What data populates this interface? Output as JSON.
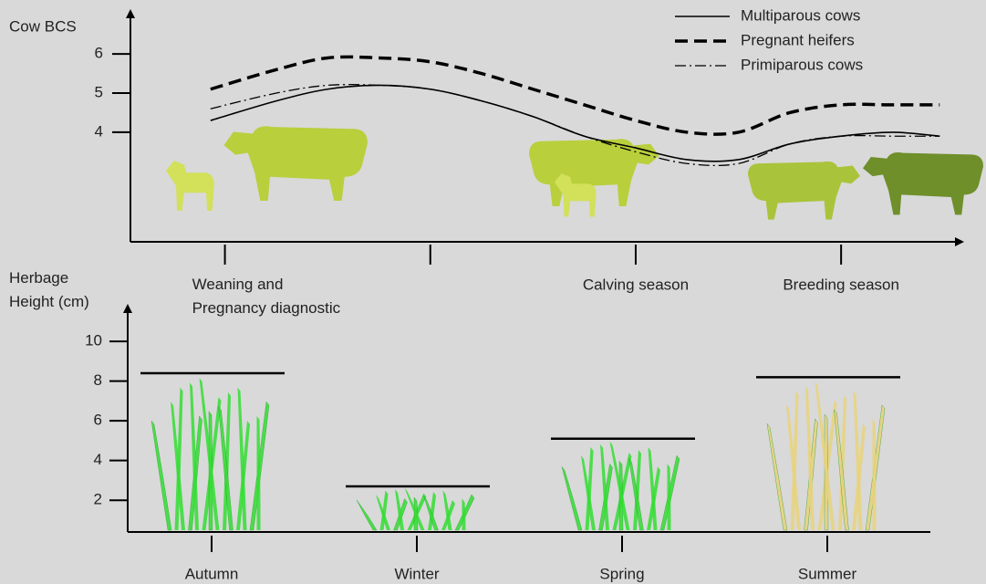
{
  "chart_data": [
    {
      "type": "line",
      "ylabel": "Cow BCS",
      "x": [
        -0.07,
        0.25,
        0.5,
        0.75,
        1.0,
        1.25,
        1.5,
        1.75,
        2.0,
        2.25,
        2.5,
        2.75,
        3.0,
        3.25,
        3.48
      ],
      "xlim": [
        -0.46,
        3.59
      ],
      "xticks": [
        {
          "value": 0,
          "label": "Weaning and\nPregnancy diagnostic"
        },
        {
          "value": 1,
          "label": null
        },
        {
          "value": 2,
          "label": "Calving season"
        },
        {
          "value": 3,
          "label": "Breeding season"
        }
      ],
      "ylim": [
        1.2,
        7.1
      ],
      "yticks": [
        4,
        5,
        6
      ],
      "legend": "top-right",
      "series": [
        {
          "name": "Multiparous cows",
          "color": "#000000",
          "dash": "solid",
          "values": [
            4.3,
            4.8,
            5.1,
            5.2,
            5.1,
            4.8,
            4.4,
            3.9,
            3.6,
            3.3,
            3.3,
            3.7,
            3.9,
            4.0,
            3.9
          ]
        },
        {
          "name": "Pregnant heifers",
          "color": "#000000",
          "dash": "dashed",
          "values": [
            5.1,
            5.6,
            5.9,
            5.9,
            5.8,
            5.5,
            5.1,
            4.7,
            4.3,
            4.0,
            4.0,
            4.5,
            4.7,
            4.7,
            4.7
          ]
        },
        {
          "name": "Primiparous cows",
          "color": "#000000",
          "dash": "dashdot",
          "values": [
            4.6,
            5.0,
            5.2,
            5.2,
            5.1,
            4.8,
            4.4,
            3.9,
            3.5,
            3.2,
            3.2,
            3.7,
            3.9,
            3.9,
            3.9
          ]
        }
      ]
    },
    {
      "type": "level",
      "ylabel": "Herbage\nHeight (cm)",
      "categories": [
        "Autumn",
        "Winter",
        "Spring",
        "Summer"
      ],
      "values": [
        8.4,
        2.7,
        5.1,
        8.2
      ],
      "ylim": [
        0.4,
        11.8
      ],
      "yticks": [
        2,
        4,
        6,
        8,
        10
      ],
      "colors": [
        "#33dd33",
        "#33dd33",
        "#33dd33",
        "#e8d27a"
      ]
    }
  ]
}
